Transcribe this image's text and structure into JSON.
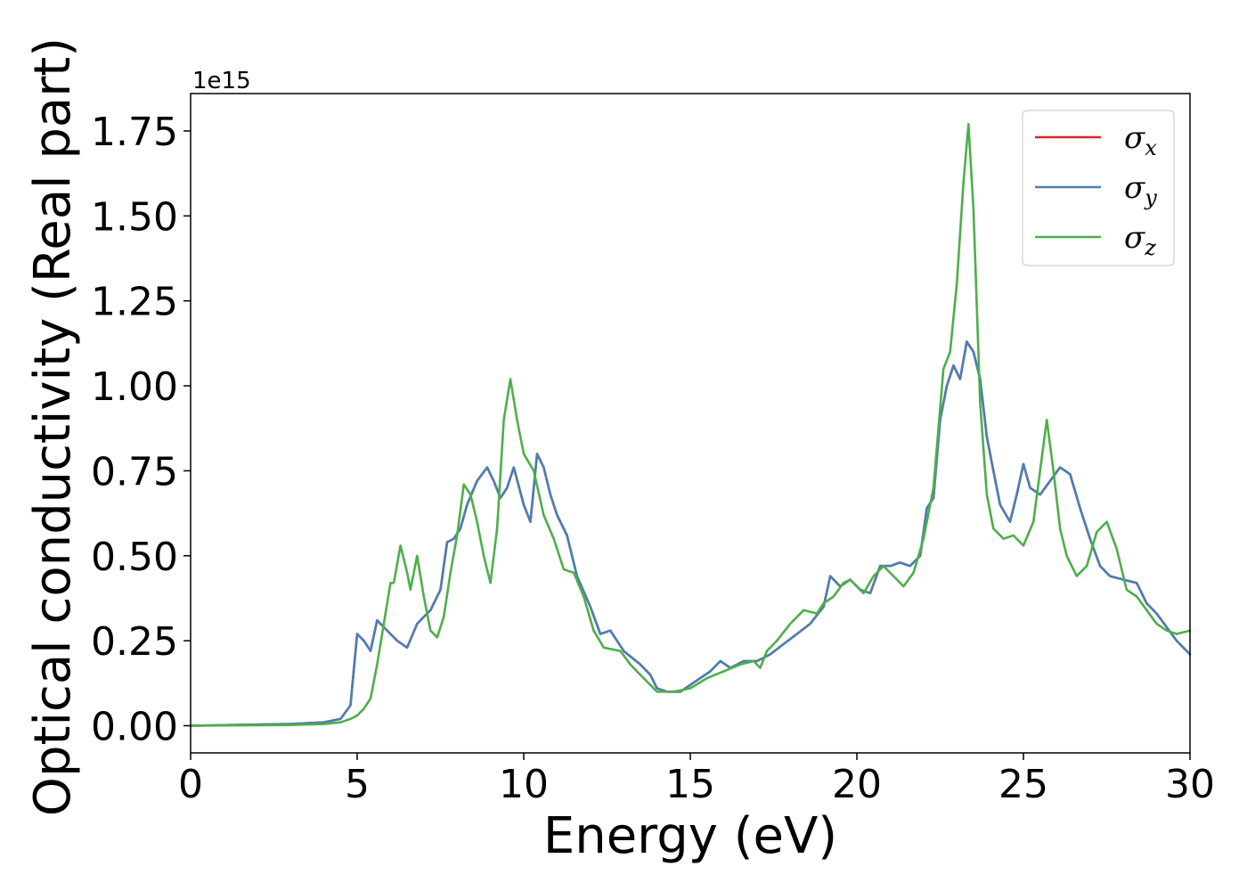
{
  "chart_data": {
    "type": "line",
    "xlabel": "Energy (eV)",
    "ylabel": "Optical conductivity (Real part)",
    "y_offset_text": "1e15",
    "xlim": [
      0,
      30
    ],
    "ylim": [
      -0.08,
      1.86
    ],
    "xticks": [
      0,
      5,
      10,
      15,
      20,
      25,
      30
    ],
    "xtick_labels": [
      "0",
      "5",
      "10",
      "15",
      "20",
      "25",
      "30"
    ],
    "yticks": [
      0.0,
      0.25,
      0.5,
      0.75,
      1.0,
      1.25,
      1.5,
      1.75
    ],
    "ytick_labels": [
      "0.00",
      "0.25",
      "0.50",
      "0.75",
      "1.00",
      "1.25",
      "1.50",
      "1.75"
    ],
    "grid": false,
    "legend_position": "top-right",
    "series": [
      {
        "name": "σx",
        "symbol": "σ",
        "subscript": "x",
        "color": "#d62728",
        "x": [
          0,
          3,
          4,
          4.5,
          4.8,
          5.0,
          5.2,
          5.4,
          5.6,
          5.8,
          6.0,
          6.2,
          6.5,
          6.8,
          7.0,
          7.2,
          7.5,
          7.7,
          7.9,
          8.1,
          8.3,
          8.6,
          8.9,
          9.1,
          9.3,
          9.5,
          9.7,
          10.0,
          10.2,
          10.4,
          10.6,
          10.8,
          11.0,
          11.3,
          11.6,
          12.0,
          12.3,
          12.6,
          13.0,
          13.5,
          13.8,
          14.0,
          14.3,
          14.7,
          15.0,
          15.3,
          15.6,
          15.9,
          16.2,
          16.6,
          17.0,
          17.4,
          17.8,
          18.2,
          18.6,
          19.0,
          19.2,
          19.5,
          19.8,
          20.1,
          20.4,
          20.7,
          21.0,
          21.3,
          21.6,
          21.9,
          22.1,
          22.3,
          22.5,
          22.7,
          22.9,
          23.1,
          23.3,
          23.5,
          23.7,
          23.9,
          24.1,
          24.3,
          24.6,
          24.8,
          25.0,
          25.2,
          25.5,
          25.8,
          26.1,
          26.4,
          26.7,
          27.0,
          27.3,
          27.6,
          28.0,
          28.4,
          28.7,
          29.0,
          29.3,
          29.6,
          30.0
        ],
        "y": [
          0,
          0.005,
          0.01,
          0.02,
          0.06,
          0.27,
          0.25,
          0.22,
          0.31,
          0.29,
          0.27,
          0.25,
          0.23,
          0.3,
          0.32,
          0.34,
          0.4,
          0.54,
          0.55,
          0.58,
          0.65,
          0.72,
          0.76,
          0.72,
          0.67,
          0.7,
          0.76,
          0.65,
          0.6,
          0.8,
          0.76,
          0.68,
          0.62,
          0.56,
          0.44,
          0.35,
          0.27,
          0.28,
          0.22,
          0.18,
          0.15,
          0.11,
          0.1,
          0.1,
          0.12,
          0.14,
          0.16,
          0.19,
          0.17,
          0.19,
          0.19,
          0.21,
          0.24,
          0.27,
          0.3,
          0.35,
          0.44,
          0.41,
          0.43,
          0.4,
          0.39,
          0.47,
          0.47,
          0.48,
          0.47,
          0.5,
          0.64,
          0.67,
          0.9,
          1.0,
          1.06,
          1.02,
          1.13,
          1.1,
          1.02,
          0.85,
          0.75,
          0.65,
          0.6,
          0.68,
          0.77,
          0.7,
          0.68,
          0.72,
          0.76,
          0.74,
          0.64,
          0.55,
          0.47,
          0.44,
          0.43,
          0.42,
          0.36,
          0.33,
          0.29,
          0.25,
          0.21
        ]
      },
      {
        "name": "σy",
        "symbol": "σ",
        "subscript": "y",
        "color": "#4a7fb5",
        "x": [
          0,
          3,
          4,
          4.5,
          4.8,
          5.0,
          5.2,
          5.4,
          5.6,
          5.8,
          6.0,
          6.2,
          6.5,
          6.8,
          7.0,
          7.2,
          7.5,
          7.7,
          7.9,
          8.1,
          8.3,
          8.6,
          8.9,
          9.1,
          9.3,
          9.5,
          9.7,
          10.0,
          10.2,
          10.4,
          10.6,
          10.8,
          11.0,
          11.3,
          11.6,
          12.0,
          12.3,
          12.6,
          13.0,
          13.5,
          13.8,
          14.0,
          14.3,
          14.7,
          15.0,
          15.3,
          15.6,
          15.9,
          16.2,
          16.6,
          17.0,
          17.4,
          17.8,
          18.2,
          18.6,
          19.0,
          19.2,
          19.5,
          19.8,
          20.1,
          20.4,
          20.7,
          21.0,
          21.3,
          21.6,
          21.9,
          22.1,
          22.3,
          22.5,
          22.7,
          22.9,
          23.1,
          23.3,
          23.5,
          23.7,
          23.9,
          24.1,
          24.3,
          24.6,
          24.8,
          25.0,
          25.2,
          25.5,
          25.8,
          26.1,
          26.4,
          26.7,
          27.0,
          27.3,
          27.6,
          28.0,
          28.4,
          28.7,
          29.0,
          29.3,
          29.6,
          30.0
        ],
        "y": [
          0,
          0.005,
          0.01,
          0.02,
          0.06,
          0.27,
          0.25,
          0.22,
          0.31,
          0.29,
          0.27,
          0.25,
          0.23,
          0.3,
          0.32,
          0.34,
          0.4,
          0.54,
          0.55,
          0.58,
          0.65,
          0.72,
          0.76,
          0.72,
          0.67,
          0.7,
          0.76,
          0.65,
          0.6,
          0.8,
          0.76,
          0.68,
          0.62,
          0.56,
          0.44,
          0.35,
          0.27,
          0.28,
          0.22,
          0.18,
          0.15,
          0.11,
          0.1,
          0.1,
          0.12,
          0.14,
          0.16,
          0.19,
          0.17,
          0.19,
          0.19,
          0.21,
          0.24,
          0.27,
          0.3,
          0.35,
          0.44,
          0.41,
          0.43,
          0.4,
          0.39,
          0.47,
          0.47,
          0.48,
          0.47,
          0.5,
          0.64,
          0.67,
          0.9,
          1.0,
          1.06,
          1.02,
          1.13,
          1.1,
          1.02,
          0.85,
          0.75,
          0.65,
          0.6,
          0.68,
          0.77,
          0.7,
          0.68,
          0.72,
          0.76,
          0.74,
          0.64,
          0.55,
          0.47,
          0.44,
          0.43,
          0.42,
          0.36,
          0.33,
          0.29,
          0.25,
          0.21
        ]
      },
      {
        "name": "σz",
        "symbol": "σ",
        "subscript": "z",
        "color": "#4daf4a",
        "x": [
          0,
          3,
          4,
          4.5,
          4.8,
          5.0,
          5.2,
          5.4,
          5.6,
          5.8,
          6.0,
          6.1,
          6.3,
          6.5,
          6.6,
          6.8,
          7.0,
          7.2,
          7.4,
          7.6,
          7.8,
          8.0,
          8.2,
          8.4,
          8.6,
          8.8,
          9.0,
          9.2,
          9.4,
          9.6,
          9.8,
          10.0,
          10.3,
          10.6,
          10.9,
          11.2,
          11.5,
          11.8,
          12.1,
          12.4,
          12.9,
          13.2,
          13.6,
          14.0,
          14.5,
          15.0,
          15.5,
          16.0,
          16.5,
          16.9,
          17.1,
          17.3,
          17.6,
          18.0,
          18.4,
          18.8,
          19.0,
          19.3,
          19.6,
          19.8,
          20.0,
          20.2,
          20.5,
          20.8,
          21.1,
          21.4,
          21.7,
          22.0,
          22.3,
          22.6,
          22.8,
          23.0,
          23.2,
          23.35,
          23.5,
          23.7,
          23.9,
          24.1,
          24.4,
          24.7,
          25.0,
          25.3,
          25.5,
          25.7,
          25.9,
          26.1,
          26.3,
          26.6,
          26.9,
          27.2,
          27.5,
          27.8,
          28.1,
          28.4,
          28.7,
          29.0,
          29.3,
          29.6,
          30.0
        ],
        "y": [
          0,
          0.002,
          0.005,
          0.01,
          0.02,
          0.03,
          0.05,
          0.08,
          0.18,
          0.3,
          0.42,
          0.42,
          0.53,
          0.45,
          0.4,
          0.5,
          0.38,
          0.28,
          0.26,
          0.32,
          0.45,
          0.56,
          0.71,
          0.68,
          0.6,
          0.5,
          0.42,
          0.58,
          0.9,
          1.02,
          0.9,
          0.8,
          0.75,
          0.62,
          0.55,
          0.46,
          0.45,
          0.38,
          0.28,
          0.23,
          0.22,
          0.18,
          0.14,
          0.1,
          0.1,
          0.11,
          0.14,
          0.16,
          0.18,
          0.19,
          0.17,
          0.22,
          0.25,
          0.3,
          0.34,
          0.33,
          0.36,
          0.38,
          0.42,
          0.43,
          0.41,
          0.39,
          0.44,
          0.47,
          0.44,
          0.41,
          0.45,
          0.55,
          0.7,
          1.05,
          1.1,
          1.3,
          1.6,
          1.77,
          1.52,
          0.95,
          0.68,
          0.58,
          0.55,
          0.56,
          0.53,
          0.6,
          0.75,
          0.9,
          0.75,
          0.58,
          0.5,
          0.44,
          0.47,
          0.57,
          0.6,
          0.52,
          0.4,
          0.38,
          0.34,
          0.3,
          0.28,
          0.27,
          0.28
        ]
      }
    ]
  }
}
